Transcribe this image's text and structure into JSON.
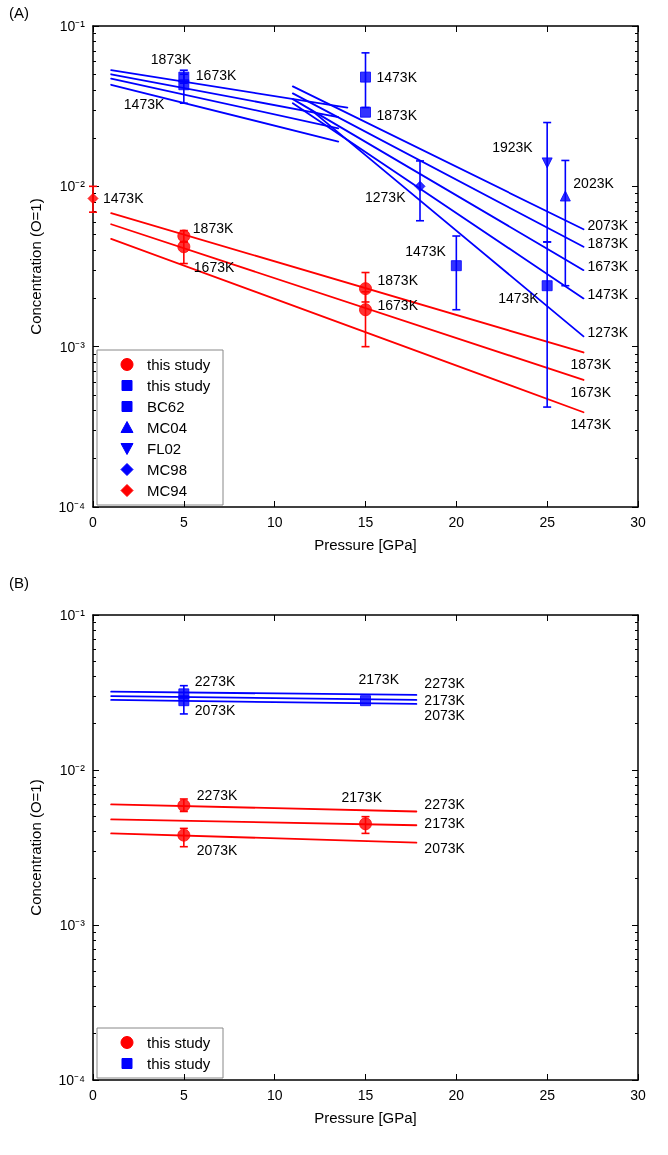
{
  "chart_data": [
    {
      "type": "line",
      "title": "(A)",
      "xlabel": "Pressure [GPa]",
      "ylabel": "Concentration (O=1)",
      "log": "y",
      "grid": false,
      "legend": "bottom left",
      "xlim": [
        0,
        30
      ],
      "xticks": [
        0,
        5,
        10,
        15,
        20,
        25,
        30
      ],
      "ylim": [
        0.0001,
        0.1
      ],
      "yticks": [
        {
          "value": 0.0001,
          "label": "10⁻⁴"
        },
        {
          "value": 0.001,
          "label": "10⁻³"
        },
        {
          "value": 0.01,
          "label": "10⁻²"
        },
        {
          "value": 0.1,
          "label": "10⁻¹"
        }
      ],
      "series": [
        {
          "color": "#ff0000",
          "x": [
            1,
            27
          ],
          "values": [
            0.0068,
            0.00092
          ]
        },
        {
          "color": "#ff0000",
          "x": [
            1,
            27
          ],
          "values": [
            0.0058,
            0.00062
          ]
        },
        {
          "color": "#ff0000",
          "x": [
            1,
            27
          ],
          "values": [
            0.0047,
            0.00039
          ]
        },
        {
          "color": "#0000ff",
          "x": [
            1,
            14
          ],
          "values": [
            0.053,
            0.031
          ]
        },
        {
          "color": "#0000ff",
          "x": [
            1,
            13.5
          ],
          "values": [
            0.05,
            0.027
          ]
        },
        {
          "color": "#0000ff",
          "x": [
            1,
            13.5
          ],
          "values": [
            0.047,
            0.023
          ]
        },
        {
          "color": "#0000ff",
          "x": [
            1,
            13.5
          ],
          "values": [
            0.043,
            0.019
          ]
        },
        {
          "color": "#0000ff",
          "x": [
            11,
            27
          ],
          "values": [
            0.042,
            0.0054
          ]
        },
        {
          "color": "#0000ff",
          "x": [
            11,
            27
          ],
          "values": [
            0.038,
            0.0042
          ]
        },
        {
          "color": "#0000ff",
          "x": [
            11,
            27
          ],
          "values": [
            0.035,
            0.003
          ]
        },
        {
          "color": "#0000ff",
          "x": [
            11,
            27
          ],
          "values": [
            0.033,
            0.002
          ]
        },
        {
          "color": "#0000ff",
          "x": [
            12,
            27
          ],
          "values": [
            0.03,
            0.00116
          ]
        },
        {
          "type": "scatter",
          "name": "this study",
          "color": "#ff0000",
          "marker": "circle",
          "x": [
            5,
            5,
            15,
            15
          ],
          "values": [
            0.0049,
            0.0042,
            0.0023,
            0.0017
          ],
          "errors": [
            [
              0.0045,
              0.0053
            ],
            [
              0.0033,
              0.0045
            ],
            [
              0.0019,
              0.0029
            ],
            [
              0.001,
              0.0022
            ]
          ]
        },
        {
          "type": "scatter",
          "name": "this study",
          "color": "#0000ff",
          "marker": "square",
          "x": [
            5,
            15
          ],
          "values": [
            0.048,
            0.029
          ],
          "errors": [
            [
              0.044,
              0.053
            ],
            null
          ]
        },
        {
          "type": "scatter",
          "name": "BC62",
          "color": "#0000ff",
          "marker": "square",
          "x": [
            5,
            15,
            20,
            25
          ],
          "values": [
            0.043,
            0.048,
            0.0032,
            0.0024
          ],
          "errors": [
            [
              0.033,
              0.05
            ],
            [
              0.031,
              0.068
            ],
            [
              0.0017,
              0.0049
            ],
            [
              0.00042,
              0.0045
            ]
          ]
        },
        {
          "type": "scatter",
          "name": "MC04",
          "color": "#0000ff",
          "marker": "triangle",
          "x": [
            26
          ],
          "values": [
            0.0087
          ],
          "errors": [
            [
              0.0024,
              0.0145
            ]
          ]
        },
        {
          "type": "scatter",
          "name": "FL02",
          "color": "#0000ff",
          "marker": "triangle-down",
          "x": [
            25
          ],
          "values": [
            0.014
          ],
          "errors": [
            [
              0.0045,
              0.025
            ]
          ]
        },
        {
          "type": "scatter",
          "name": "MC98",
          "color": "#0000ff",
          "marker": "diamond",
          "x": [
            18
          ],
          "values": [
            0.01
          ],
          "errors": [
            [
              0.0061,
              0.0144
            ]
          ]
        },
        {
          "type": "scatter",
          "name": "MC94",
          "color": "#ff0000",
          "marker": "diamond",
          "x": [
            0
          ],
          "values": [
            0.0084
          ],
          "errors": [
            [
              0.0069,
              0.01
            ]
          ]
        }
      ],
      "annotations": [
        {
          "text": "1873K",
          "x": 5,
          "y": 0.048
        },
        {
          "text": "1673K",
          "x": 5,
          "y": 0.043
        },
        {
          "text": "1473K",
          "x": 5,
          "y": 0.043
        },
        {
          "text": "1473K",
          "x": 0,
          "y": 0.0084
        },
        {
          "text": "1873K",
          "x": 5,
          "y": 0.0049
        },
        {
          "text": "1673K",
          "x": 5,
          "y": 0.0042
        },
        {
          "text": "1473K",
          "x": 15,
          "y": 0.048
        },
        {
          "text": "1873K",
          "x": 15,
          "y": 0.029
        },
        {
          "text": "1923K",
          "x": 25,
          "y": 0.014
        },
        {
          "text": "2023K",
          "x": 26,
          "y": 0.0087
        },
        {
          "text": "1273K",
          "x": 18,
          "y": 0.01
        },
        {
          "text": "1473K",
          "x": 20,
          "y": 0.0032
        },
        {
          "text": "1873K",
          "x": 15,
          "y": 0.0023
        },
        {
          "text": "1673K",
          "x": 15,
          "y": 0.0017
        },
        {
          "text": "1473K",
          "x": 25,
          "y": 0.0024
        },
        {
          "text": "2073K",
          "x": 27,
          "y": 0.0054
        },
        {
          "text": "1873K",
          "x": 27,
          "y": 0.0042
        },
        {
          "text": "1673K",
          "x": 27,
          "y": 0.003
        },
        {
          "text": "1473K",
          "x": 27,
          "y": 0.002
        },
        {
          "text": "1273K",
          "x": 27,
          "y": 0.00116
        },
        {
          "text": "1873K",
          "x": 27,
          "y": 0.00092
        },
        {
          "text": "1673K",
          "x": 27,
          "y": 0.00062
        },
        {
          "text": "1473K",
          "x": 27,
          "y": 0.00039
        }
      ]
    },
    {
      "type": "line",
      "title": "(B)",
      "xlabel": "Pressure [GPa]",
      "ylabel": "Concentration (O=1)",
      "log": "y",
      "grid": false,
      "legend": "bottom left",
      "xlim": [
        0,
        30
      ],
      "xticks": [
        0,
        5,
        10,
        15,
        20,
        25,
        30
      ],
      "ylim": [
        0.0001,
        0.1
      ],
      "yticks": [
        {
          "value": 0.0001,
          "label": "10⁻⁴"
        },
        {
          "value": 0.001,
          "label": "10⁻³"
        },
        {
          "value": 0.01,
          "label": "10⁻²"
        },
        {
          "value": 0.1,
          "label": "10⁻¹"
        }
      ],
      "series": [
        {
          "color": "#0000ff",
          "x": [
            1,
            17.8
          ],
          "values": [
            0.032,
            0.0305
          ]
        },
        {
          "color": "#0000ff",
          "x": [
            1,
            17.8
          ],
          "values": [
            0.03,
            0.0283
          ]
        },
        {
          "color": "#0000ff",
          "x": [
            1,
            17.8
          ],
          "values": [
            0.0283,
            0.0267
          ]
        },
        {
          "color": "#ff0000",
          "x": [
            1,
            17.8
          ],
          "values": [
            0.006,
            0.0054
          ]
        },
        {
          "color": "#ff0000",
          "x": [
            1,
            17.8
          ],
          "values": [
            0.0048,
            0.0044
          ]
        },
        {
          "color": "#ff0000",
          "x": [
            1,
            17.8
          ],
          "values": [
            0.0039,
            0.0034
          ]
        },
        {
          "type": "scatter",
          "name": "this study",
          "color": "#ff0000",
          "marker": "circle",
          "x": [
            5,
            5,
            15
          ],
          "values": [
            0.0059,
            0.0038,
            0.0045
          ],
          "errors": [
            [
              0.0054,
              0.0065
            ],
            [
              0.0032,
              0.0042
            ],
            [
              0.0039,
              0.005
            ]
          ]
        },
        {
          "type": "scatter",
          "name": "this study",
          "color": "#0000ff",
          "marker": "square",
          "x": [
            5,
            5,
            15
          ],
          "values": [
            0.031,
            0.028,
            0.028
          ],
          "errors": [
            [
              0.023,
              0.035
            ],
            null,
            null
          ]
        }
      ],
      "annotations": [
        {
          "text": "2273K",
          "x": 5,
          "y": 0.031
        },
        {
          "text": "2073K",
          "x": 5,
          "y": 0.028
        },
        {
          "text": "2173K",
          "x": 15,
          "y": 0.028
        },
        {
          "text": "2273K",
          "x": 17.8,
          "y": 0.0305
        },
        {
          "text": "2173K",
          "x": 17.8,
          "y": 0.0283
        },
        {
          "text": "2073K",
          "x": 17.8,
          "y": 0.0267
        },
        {
          "text": "2273K",
          "x": 5,
          "y": 0.0059
        },
        {
          "text": "2173K",
          "x": 15,
          "y": 0.0045
        },
        {
          "text": "2073K",
          "x": 5,
          "y": 0.0038
        },
        {
          "text": "2273K",
          "x": 17.8,
          "y": 0.0054
        },
        {
          "text": "2173K",
          "x": 17.8,
          "y": 0.0044
        },
        {
          "text": "2073K",
          "x": 17.8,
          "y": 0.0034
        }
      ]
    }
  ]
}
